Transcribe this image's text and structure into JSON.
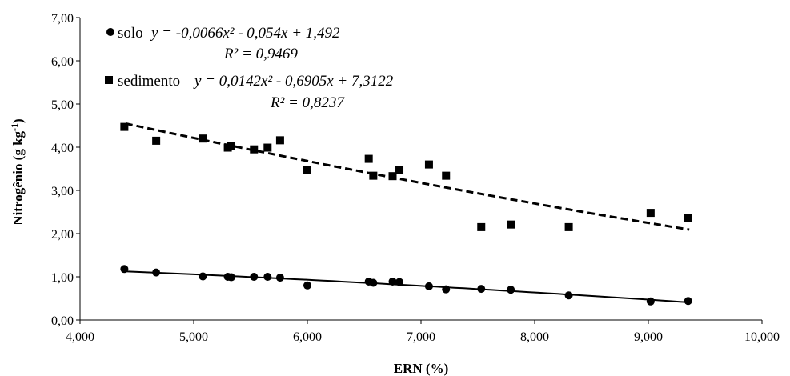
{
  "chart_data": {
    "type": "scatter",
    "title": "",
    "xlabel": "ERN (%)",
    "ylabel": "Nitrogênio  (g kg-1)",
    "ylabel_main": "Nitrogênio  (g kg",
    "ylabel_sup": "-1",
    "ylabel_close": ")",
    "xlim": [
      4000,
      10000
    ],
    "ylim": [
      0,
      7
    ],
    "x_ticks": [
      "4,000",
      "5,000",
      "6,000",
      "7,000",
      "8,000",
      "9,000",
      "10,000"
    ],
    "y_ticks": [
      "0,00",
      "1,00",
      "2,00",
      "3,00",
      "4,00",
      "5,00",
      "6,00",
      "7,00"
    ],
    "grid": false,
    "legend_position": "top-left",
    "series": [
      {
        "name": "solo",
        "marker": "circle",
        "trendline": "solid",
        "equation": "y = -0,0066x² - 0,054x + 1,492",
        "r2": "R² = 0,9469",
        "coef": [
          -0.0066,
          -0.054,
          1.492
        ],
        "x_range": [
          4400,
          9360
        ],
        "points": [
          [
            4390,
            1.18
          ],
          [
            4670,
            1.1
          ],
          [
            5080,
            1.01
          ],
          [
            5300,
            1.0
          ],
          [
            5330,
            0.99
          ],
          [
            5530,
            1.0
          ],
          [
            5650,
            1.0
          ],
          [
            5760,
            0.98
          ],
          [
            6000,
            0.8
          ],
          [
            6540,
            0.89
          ],
          [
            6580,
            0.86
          ],
          [
            6750,
            0.89
          ],
          [
            6810,
            0.88
          ],
          [
            7070,
            0.78
          ],
          [
            7220,
            0.71
          ],
          [
            7530,
            0.72
          ],
          [
            7790,
            0.7
          ],
          [
            8300,
            0.57
          ],
          [
            9020,
            0.43
          ],
          [
            9350,
            0.44
          ]
        ]
      },
      {
        "name": "sedimento",
        "marker": "square",
        "trendline": "dashed",
        "equation": "y = 0,0142x² - 0,6905x + 7,3122",
        "r2": "R² = 0,8237",
        "coef": [
          0.0142,
          -0.6905,
          7.3122
        ],
        "x_range": [
          4400,
          9360
        ],
        "points": [
          [
            4390,
            4.47
          ],
          [
            4670,
            4.15
          ],
          [
            5080,
            4.2
          ],
          [
            5300,
            3.99
          ],
          [
            5330,
            4.03
          ],
          [
            5530,
            3.95
          ],
          [
            5650,
            3.99
          ],
          [
            5760,
            4.16
          ],
          [
            6000,
            3.47
          ],
          [
            6540,
            3.73
          ],
          [
            6580,
            3.34
          ],
          [
            6750,
            3.33
          ],
          [
            6810,
            3.47
          ],
          [
            7070,
            3.6
          ],
          [
            7220,
            3.34
          ],
          [
            7530,
            2.15
          ],
          [
            7790,
            2.21
          ],
          [
            8300,
            2.15
          ],
          [
            9020,
            2.48
          ],
          [
            9350,
            2.36
          ]
        ]
      }
    ]
  },
  "colors": {
    "marker": "#000000",
    "line": "#000000",
    "background": "#ffffff"
  }
}
